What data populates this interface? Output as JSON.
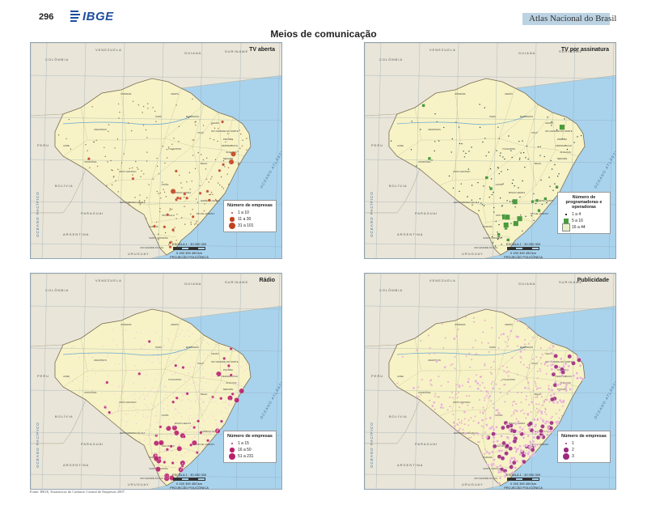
{
  "header": {
    "page_number": "296",
    "logo": "IBGE",
    "atlas_title": "Atlas Nacional do Brasil"
  },
  "page_title": "Meios de comunicação",
  "map_labels": {
    "countries": [
      "VENEZUELA",
      "COLÔMBIA",
      "GUIANA",
      "SURINAME",
      "PERU",
      "BOLÍVIA",
      "PARAGUAI",
      "ARGENTINA",
      "URUGUAY"
    ],
    "ocean_atlantic": "OCEANO ATLÂNTICO",
    "ocean_pacific": "OCEANO PACÍFICO",
    "states": [
      "RORAIMA",
      "AMAPÁ",
      "AMAZONAS",
      "PARÁ",
      "MARANHÃO",
      "CEARÁ",
      "RIO GRANDE DO NORTE",
      "PARAÍBA",
      "PERNAMBUCO",
      "ALAGOAS",
      "SERGIPE",
      "PIAUÍ",
      "ACRE",
      "RONDÔNIA",
      "TOCANTINS",
      "BAHIA",
      "MATO GROSSO",
      "GOIÁS",
      "MINAS GERAIS",
      "ESPÍRITO SANTO",
      "MATO GROSSO DO SUL",
      "SÃO PAULO",
      "RIO DE JANEIRO",
      "PARANÁ",
      "SANTA CATARINA",
      "RIO GRANDE DO SUL"
    ],
    "scale": "ESCALA 1 : 30 000 000",
    "scale_km": "0    150    300    450 km",
    "projection": "PROJEÇÃO POLICÔNICA"
  },
  "maps": [
    {
      "id": "tv-aberta",
      "title": "TV aberta",
      "symbol": "circle",
      "color": "#c2421f",
      "legend_title": "Número de empresas",
      "legend": [
        {
          "label": "1 a 10"
        },
        {
          "label": "11 a 30"
        },
        {
          "label": "31 a 101"
        }
      ]
    },
    {
      "id": "tv-assinatura",
      "title": "TV por assinatura",
      "symbol": "square",
      "color": "#4a9a3a",
      "legend_title": "Número de programadoras e operadoras",
      "legend": [
        {
          "label": "1 a 4"
        },
        {
          "label": "5 a 16"
        },
        {
          "label": "16 a 44"
        }
      ]
    },
    {
      "id": "radio",
      "title": "Rádio",
      "symbol": "circle",
      "color": "#b8206a",
      "legend_title": "Número de empresas",
      "legend": [
        {
          "label": "1 a 15"
        },
        {
          "label": "16 a 50"
        },
        {
          "label": "51 a 231"
        }
      ]
    },
    {
      "id": "publicidade",
      "title": "Publicidade",
      "symbol": "circle",
      "color": "#9c2a7c",
      "legend_title": "Número de empresas",
      "legend": [
        {
          "label": "1"
        },
        {
          "label": "2"
        },
        {
          "label": "3"
        }
      ]
    }
  ],
  "source": "Fonte: IBGE, Estatísticas do Cadastro Central de Empresas 2007."
}
